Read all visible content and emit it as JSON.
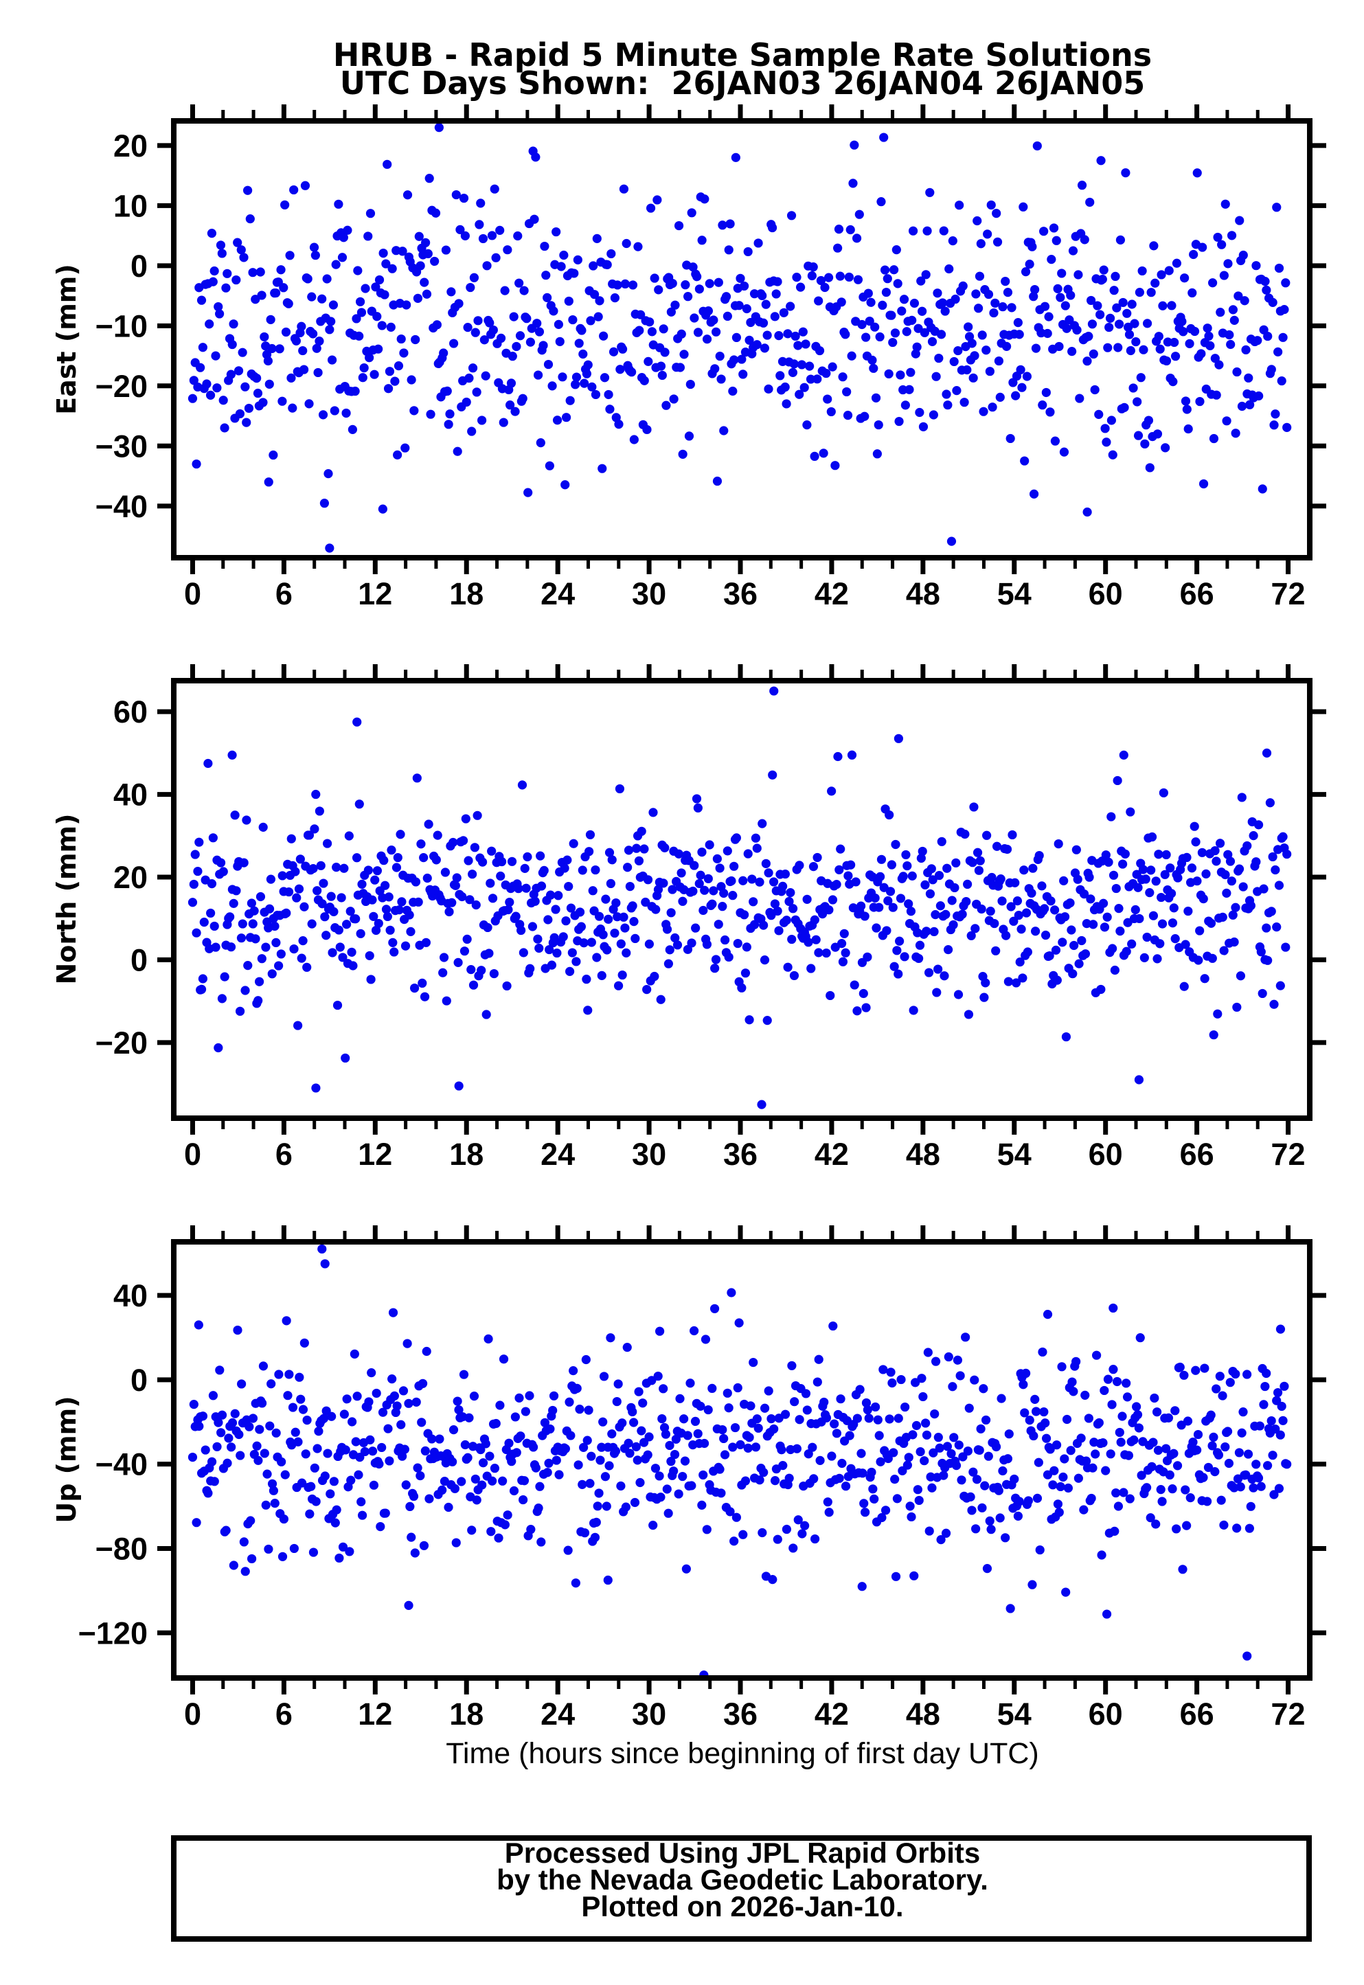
{
  "title": {
    "line1": "HRUB - Rapid 5 Minute Sample Rate Solutions",
    "line2": "UTC Days Shown:  26JAN03 26JAN04 26JAN05"
  },
  "footer": {
    "lines": [
      "Processed Using JPL Rapid Orbits",
      "by the Nevada Geodetic Laboratory.",
      "Plotted on 2026-Jan-10."
    ]
  },
  "style": {
    "dot_color": "#0404ef",
    "axis_color": "#000000",
    "background": "#ffffff"
  },
  "xaxis": {
    "title": "Time (hours since beginning of first day UTC)",
    "lim": [
      -1.24,
      73.42
    ],
    "major_ticks": [
      0,
      6,
      12,
      18,
      24,
      30,
      36,
      42,
      48,
      54,
      60,
      66,
      72
    ],
    "minor_step": 2
  },
  "chart_data": {
    "type": "scatter",
    "x_unit": "hours",
    "sample_interval_hours": 0.0833333,
    "marker": {
      "shape": "circle",
      "color": "#0404ef",
      "radius_px": 6.6
    },
    "panels": [
      {
        "name": "east",
        "ylabel": "East (mm)",
        "ylim": [
          -48.6,
          24.1
        ],
        "yticks": [
          -40,
          -30,
          -20,
          -10,
          0,
          10,
          20
        ],
        "points_per_day": 288,
        "days": 3,
        "gen": {
          "seed": 11,
          "count": 856,
          "mean": -10.5,
          "std": 10.2,
          "clip": [
            -47,
            23.5
          ],
          "x_start": 0,
          "x_step": 0.0833333
        },
        "outliers": [
          [
            16.2,
            23
          ],
          [
            9.0,
            -47
          ],
          [
            12.5,
            -40.5
          ],
          [
            58.8,
            -41
          ],
          [
            35.7,
            18
          ],
          [
            59.7,
            17.5
          ],
          [
            55.3,
            -38
          ],
          [
            5.0,
            -36
          ]
        ]
      },
      {
        "name": "north",
        "ylabel": "North (mm)",
        "ylim": [
          -38.3,
          67.5
        ],
        "yticks": [
          -20,
          0,
          20,
          40,
          60
        ],
        "points_per_day": 288,
        "days": 3,
        "gen": {
          "seed": 22,
          "count": 854,
          "mean": 13,
          "std": 11,
          "clip": [
            -33,
            58
          ],
          "x_start": 0,
          "x_step": 0.0833333
        },
        "outliers": [
          [
            38.2,
            65
          ],
          [
            10.8,
            57.5
          ],
          [
            2.6,
            49.5
          ],
          [
            61.2,
            49.5
          ],
          [
            70.6,
            50
          ],
          [
            46.4,
            53.5
          ],
          [
            37.4,
            -35
          ],
          [
            8.1,
            -31
          ],
          [
            62.2,
            -29
          ],
          [
            17.5,
            -30.5
          ]
        ]
      },
      {
        "name": "up",
        "ylabel": "Up (mm)",
        "ylim": [
          -141.4,
          65.4
        ],
        "yticks": [
          -120,
          -80,
          -40,
          0,
          40
        ],
        "points_per_day": 288,
        "days": 3,
        "gen": {
          "seed": 33,
          "count": 852,
          "mean": -35,
          "std": 24,
          "clip": [
            -112,
            58
          ],
          "x_start": 0,
          "x_step": 0.0833333
        },
        "outliers": [
          [
            8.5,
            62
          ],
          [
            8.7,
            55
          ],
          [
            33.6,
            -140
          ],
          [
            69.3,
            -131
          ],
          [
            14.2,
            -107
          ],
          [
            60.5,
            34
          ],
          [
            56.2,
            31
          ],
          [
            0.4,
            26
          ],
          [
            30.7,
            23
          ],
          [
            71.5,
            24
          ],
          [
            27.3,
            -95
          ],
          [
            44,
            -98
          ]
        ]
      }
    ]
  }
}
